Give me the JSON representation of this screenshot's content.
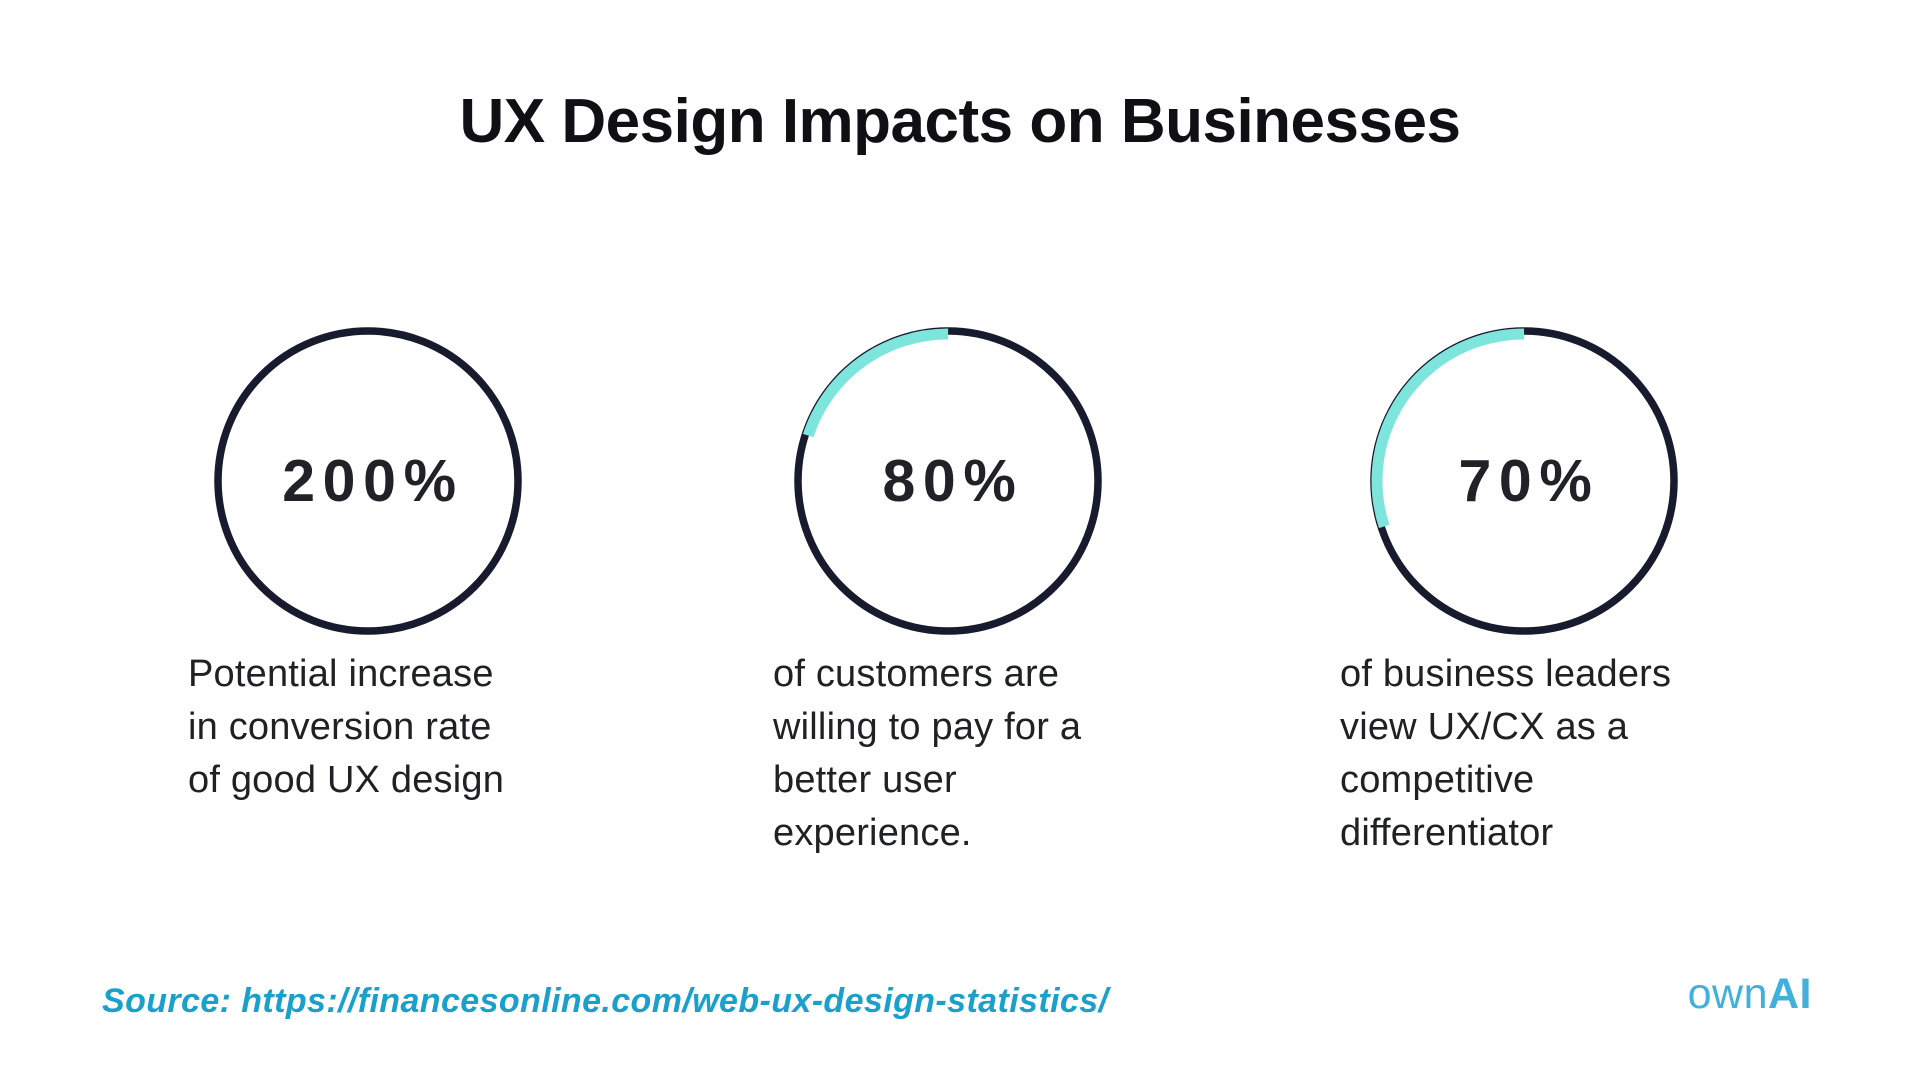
{
  "title": "UX Design Impacts on Businesses",
  "colors": {
    "ring_dark": "#181a2e",
    "ring_accent": "#7de5dc",
    "source_link": "#1aa0ca",
    "brand_blue": "#41b0dc",
    "percent_text": "#212227",
    "body_text": "#202124"
  },
  "chart_data": {
    "type": "pie",
    "variant": "progress-rings",
    "title": "UX Design Impacts on Businesses",
    "legend": "none",
    "stats": [
      {
        "value_label": "200%",
        "ring_percent": 100,
        "description": "Potential increase\nin conversion rate\nof good UX design"
      },
      {
        "value_label": "80%",
        "ring_percent": 80,
        "description": "of customers are\nwilling to pay for a\nbetter user\nexperience."
      },
      {
        "value_label": "70%",
        "ring_percent": 70,
        "description": "of business leaders\nview UX/CX as a\ncompetitive\ndifferentiator"
      }
    ]
  },
  "footer": {
    "source_text": "Source: https://financesonline.com/web-ux-design-statistics/",
    "logo_prefix": "own",
    "logo_suffix": "AI"
  }
}
